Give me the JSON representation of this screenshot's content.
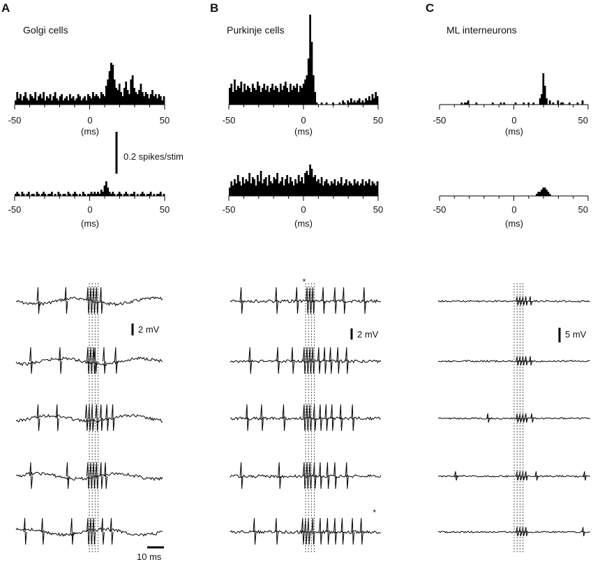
{
  "panels": [
    {
      "letter": "A",
      "title": "Golgi cells",
      "xticks": [
        "-50",
        "0",
        "50"
      ],
      "xunit": "(ms)",
      "psth_top": [
        0.02,
        0.06,
        0.03,
        0.05,
        0.02,
        0.04,
        0.06,
        0.03,
        0.02,
        0.05,
        0.04,
        0.03,
        0.06,
        0.02,
        0.04,
        0.05,
        0.03,
        0.06,
        0.02,
        0.04,
        0.03,
        0.05,
        0.02,
        0.04,
        0.06,
        0.03,
        0.02,
        0.04,
        0.05,
        0.02,
        0.03,
        0.04,
        0.02,
        0.05,
        0.03,
        0.04,
        0.02,
        0.03,
        0.05,
        0.04,
        0.02,
        0.03,
        0.04,
        0.02,
        0.05,
        0.04,
        0.03,
        0.06,
        0.04,
        0.05,
        0.04,
        0.03,
        0.06,
        0.05,
        0.04,
        0.09,
        0.12,
        0.16,
        0.2,
        0.19,
        0.12,
        0.08,
        0.07,
        0.1,
        0.06,
        0.04,
        0.08,
        0.11,
        0.07,
        0.05,
        0.12,
        0.14,
        0.08,
        0.06,
        0.05,
        0.07,
        0.1,
        0.06,
        0.04,
        0.06,
        0.05,
        0.03,
        0.05,
        0.07,
        0.04,
        0.05,
        0.03,
        0.05,
        0.04,
        0.02,
        0.04
      ],
      "psth_bottom": [
        0.01,
        0.02,
        0.01,
        0.0,
        0.02,
        0.01,
        0.0,
        0.01,
        0.02,
        0.0,
        0.01,
        0.01,
        0.0,
        0.02,
        0.01,
        0.0,
        0.01,
        0.02,
        0.01,
        0.0,
        0.01,
        0.01,
        0.02,
        0.0,
        0.01,
        0.0,
        0.02,
        0.01,
        0.0,
        0.01,
        0.01,
        0.0,
        0.02,
        0.01,
        0.0,
        0.01,
        0.02,
        0.01,
        0.0,
        0.01,
        0.0,
        0.02,
        0.01,
        0.0,
        0.01,
        0.01,
        0.02,
        0.01,
        0.02,
        0.01,
        0.02,
        0.01,
        0.03,
        0.02,
        0.05,
        0.07,
        0.04,
        0.02,
        0.01,
        0.02,
        0.01,
        0.0,
        0.01,
        0.02,
        0.01,
        0.0,
        0.01,
        0.02,
        0.01,
        0.0,
        0.01,
        0.01,
        0.02,
        0.0,
        0.01,
        0.0,
        0.01,
        0.02,
        0.01,
        0.0,
        0.01,
        0.01,
        0.02,
        0.0,
        0.01,
        0.0,
        0.01,
        0.01,
        0.02,
        0.0,
        0.01
      ],
      "psth_scale_label": "0.2 spikes/stim",
      "trace_scale_label": "2 mV",
      "time_scale_label": "10 ms",
      "traces": [
        {
          "spikes": [
            -35,
            -16,
            -1,
            1,
            3,
            5,
            8
          ],
          "stars": []
        },
        {
          "spikes": [
            -40,
            -20,
            -1,
            1,
            3,
            4,
            10,
            18
          ],
          "stars": []
        },
        {
          "spikes": [
            -35,
            -22,
            -2,
            0,
            2,
            5,
            8,
            12,
            16
          ],
          "stars": []
        },
        {
          "spikes": [
            -40,
            -15,
            -1,
            1,
            3,
            5,
            8,
            11
          ],
          "stars": []
        },
        {
          "spikes": [
            -44,
            -32,
            -12,
            -1,
            1,
            3,
            9,
            15
          ],
          "stars": []
        }
      ]
    },
    {
      "letter": "B",
      "title": "Purkinje cells",
      "xticks": [
        "-50",
        "0",
        "50"
      ],
      "xunit": "(ms)",
      "psth_top": [
        0.08,
        0.1,
        0.06,
        0.12,
        0.07,
        0.09,
        0.08,
        0.11,
        0.06,
        0.1,
        0.07,
        0.09,
        0.08,
        0.06,
        0.1,
        0.08,
        0.07,
        0.11,
        0.09,
        0.06,
        0.08,
        0.1,
        0.07,
        0.09,
        0.06,
        0.08,
        0.1,
        0.07,
        0.09,
        0.08,
        0.06,
        0.1,
        0.07,
        0.09,
        0.11,
        0.08,
        0.06,
        0.1,
        0.07,
        0.09,
        0.08,
        0.1,
        0.06,
        0.09,
        0.08,
        0.1,
        0.12,
        0.14,
        0.22,
        0.43,
        0.3,
        0.14,
        0.06,
        0.01,
        0.0,
        0.0,
        0.01,
        0.0,
        0.0,
        0.01,
        0.0,
        0.0,
        0.0,
        0.01,
        0.0,
        0.0,
        0.0,
        0.01,
        0.0,
        0.02,
        0.01,
        0.0,
        0.02,
        0.01,
        0.03,
        0.01,
        0.02,
        0.01,
        0.02,
        0.03,
        0.01,
        0.02,
        0.01,
        0.03,
        0.02,
        0.04,
        0.02,
        0.05,
        0.03,
        0.06,
        0.04
      ],
      "psth_bottom": [
        0.04,
        0.07,
        0.05,
        0.08,
        0.06,
        0.1,
        0.07,
        0.05,
        0.09,
        0.06,
        0.08,
        0.07,
        0.11,
        0.06,
        0.09,
        0.08,
        0.05,
        0.1,
        0.07,
        0.12,
        0.06,
        0.08,
        0.09,
        0.05,
        0.1,
        0.07,
        0.06,
        0.09,
        0.08,
        0.11,
        0.06,
        0.07,
        0.09,
        0.05,
        0.08,
        0.1,
        0.06,
        0.09,
        0.07,
        0.05,
        0.08,
        0.06,
        0.1,
        0.07,
        0.09,
        0.06,
        0.11,
        0.12,
        0.1,
        0.15,
        0.13,
        0.09,
        0.1,
        0.07,
        0.08,
        0.06,
        0.09,
        0.05,
        0.07,
        0.08,
        0.06,
        0.05,
        0.07,
        0.06,
        0.08,
        0.05,
        0.07,
        0.06,
        0.09,
        0.05,
        0.06,
        0.08,
        0.05,
        0.07,
        0.06,
        0.05,
        0.08,
        0.06,
        0.07,
        0.05,
        0.06,
        0.08,
        0.05,
        0.07,
        0.06,
        0.08,
        0.05,
        0.07,
        0.06,
        0.05,
        0.07
      ],
      "trace_scale_label": "2 mV",
      "traces": [
        {
          "spikes": [
            -44,
            -20,
            -6,
            1,
            3,
            5,
            12,
            20,
            26,
            40
          ],
          "stars": [
            -4
          ]
        },
        {
          "spikes": [
            -38,
            -19,
            -9,
            -1,
            1,
            3,
            5,
            9,
            13,
            17,
            22,
            28
          ],
          "stars": []
        },
        {
          "spikes": [
            -40,
            -30,
            -15,
            -1,
            1,
            3,
            6,
            10,
            14,
            18,
            24,
            32
          ],
          "stars": []
        },
        {
          "spikes": [
            -44,
            -18,
            -1,
            1,
            3,
            6,
            10,
            15,
            20,
            28
          ],
          "stars": []
        },
        {
          "spikes": [
            -35,
            -20,
            -2,
            0,
            2,
            5,
            10,
            15,
            20,
            25,
            32,
            38
          ],
          "stars": [
            44
          ]
        }
      ]
    },
    {
      "letter": "C",
      "title": "ML interneurons",
      "xticks": [
        "-50",
        "0",
        "50"
      ],
      "xunit": "(ms)",
      "psth_top": [
        0.0,
        0.0,
        0.0,
        0.0,
        0.0,
        0.0,
        0.0,
        0.0,
        0.0,
        0.0,
        0.0,
        0.0,
        0.0,
        0.01,
        0.0,
        0.01,
        0.01,
        0.02,
        0.0,
        0.0,
        0.0,
        0.0,
        0.01,
        0.0,
        0.0,
        0.0,
        0.0,
        0.0,
        0.0,
        0.0,
        0.0,
        0.0,
        0.01,
        0.0,
        0.0,
        0.0,
        0.0,
        0.01,
        0.0,
        0.01,
        0.0,
        0.0,
        0.0,
        0.0,
        0.0,
        0.0,
        0.01,
        0.0,
        0.0,
        0.0,
        0.0,
        0.01,
        0.0,
        0.0,
        0.01,
        0.0,
        0.0,
        0.01,
        0.0,
        0.0,
        0.0,
        0.03,
        0.05,
        0.15,
        0.09,
        0.03,
        0.0,
        0.02,
        0.0,
        0.01,
        0.0,
        0.0,
        0.02,
        0.0,
        0.01,
        0.01,
        0.0,
        0.0,
        0.0,
        0.01,
        0.0,
        0.0,
        0.0,
        0.0,
        0.01,
        0.0,
        0.0,
        0.02,
        0.0,
        0.0,
        0.0
      ],
      "psth_bottom": [
        0.0,
        0.0,
        0.0,
        0.0,
        0.0,
        0.0,
        0.0,
        0.0,
        0.0,
        0.0,
        0.0,
        0.0,
        0.0,
        0.0,
        0.0,
        0.0,
        0.0,
        0.0,
        0.0,
        0.0,
        0.0,
        0.0,
        0.0,
        0.0,
        0.0,
        0.0,
        0.0,
        0.0,
        0.0,
        0.0,
        0.0,
        0.0,
        0.0,
        0.0,
        0.0,
        0.0,
        0.0,
        0.0,
        0.0,
        0.0,
        0.0,
        0.0,
        0.0,
        0.0,
        0.0,
        0.0,
        0.0,
        0.0,
        0.0,
        0.0,
        0.0,
        0.0,
        0.0,
        0.0,
        0.0,
        0.0,
        0.0,
        0.0,
        0.0,
        0.01,
        0.02,
        0.02,
        0.03,
        0.04,
        0.04,
        0.03,
        0.02,
        0.01,
        0.0,
        0.0,
        0.0,
        0.0,
        0.0,
        0.0,
        0.0,
        0.0,
        0.0,
        0.0,
        0.0,
        0.0,
        0.0,
        0.0,
        0.0,
        0.0,
        0.0,
        0.0,
        0.0,
        0.0,
        0.0,
        0.0,
        0.0
      ],
      "trace_scale_label": "5 mV",
      "traces": [
        {
          "spikes": [
            2,
            4,
            6,
            8,
            11
          ],
          "stars": []
        },
        {
          "spikes": [
            2,
            4,
            6,
            8,
            11
          ],
          "stars": []
        },
        {
          "spikes": [
            -18,
            2,
            4,
            6,
            8,
            12
          ],
          "stars": []
        },
        {
          "spikes": [
            -40,
            2,
            4,
            6,
            8,
            15,
            48
          ],
          "stars": []
        },
        {
          "spikes": [
            2,
            4,
            6,
            8,
            47
          ],
          "stars": []
        }
      ]
    }
  ],
  "chart_data": [
    {
      "type": "bar",
      "title": "Golgi cells",
      "xlabel": "(ms)",
      "xlim": [
        -50,
        50
      ],
      "xticks": [
        -50,
        0,
        50
      ],
      "scale_bar": "0.2 spikes/stim",
      "series": [
        {
          "name": "",
          "values_ref": "panels.0.psth_top"
        },
        {
          "name": "",
          "values_ref": "panels.0.psth_bottom"
        }
      ]
    },
    {
      "type": "bar",
      "title": "Purkinje cells",
      "xlabel": "(ms)",
      "xlim": [
        -50,
        50
      ],
      "xticks": [
        -50,
        0,
        50
      ],
      "series": [
        {
          "name": "",
          "values_ref": "panels.1.psth_top"
        },
        {
          "name": "",
          "values_ref": "panels.1.psth_bottom"
        }
      ]
    },
    {
      "type": "bar",
      "title": "ML interneurons",
      "xlabel": "(ms)",
      "xlim": [
        -50,
        50
      ],
      "xticks": [
        -50,
        0,
        50
      ],
      "series": [
        {
          "name": "",
          "values_ref": "panels.2.psth_top"
        },
        {
          "name": "",
          "values_ref": "panels.2.psth_bottom"
        }
      ]
    },
    {
      "type": "line",
      "title": "",
      "xlabel": "",
      "scale_bars": [
        "2 mV",
        "2 mV",
        "5 mV",
        "10 ms"
      ]
    }
  ]
}
